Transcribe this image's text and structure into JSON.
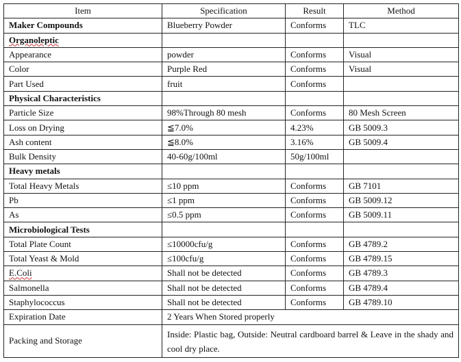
{
  "headers": [
    "Item",
    "Specification",
    "Result",
    "Method"
  ],
  "rows": [
    {
      "item": "Maker Compounds",
      "spec": "Blueberry Powder",
      "result": "Conforms",
      "method": "TLC",
      "bold": true
    },
    {
      "item": "Organoleptic",
      "spec": "",
      "result": "",
      "method": "",
      "bold": true,
      "underline": true
    },
    {
      "item": "Appearance",
      "spec": "powder",
      "result": "Conforms",
      "method": "Visual"
    },
    {
      "item": "Color",
      "spec": "Purple Red",
      "result": "Conforms",
      "method": "Visual"
    },
    {
      "item": "Part Used",
      "spec": "fruit",
      "result": "Conforms",
      "method": ""
    },
    {
      "item": "Physical Characteristics",
      "spec": "",
      "result": "",
      "method": "",
      "bold": true
    },
    {
      "item": "Particle Size",
      "spec": "98%Through 80 mesh",
      "result": "Conforms",
      "method": "80 Mesh Screen"
    },
    {
      "item": "Loss on Drying",
      "spec": "≦7.0%",
      "result": "4.23%",
      "method": "GB 5009.3"
    },
    {
      "item": "Ash content",
      "spec": "≦8.0%",
      "result": "3.16%",
      "method": "GB 5009.4"
    },
    {
      "item": "Bulk Density",
      "spec": "40-60g/100ml",
      "result": "50g/100ml",
      "method": ""
    },
    {
      "item": "Heavy metals",
      "spec": "",
      "result": "",
      "method": "",
      "bold": true
    },
    {
      "item": "Total Heavy Metals",
      "spec": "≤10 ppm",
      "result": "Conforms",
      "method": "GB 7101"
    },
    {
      "item": "Pb",
      "spec": "≤1 ppm",
      "result": "Conforms",
      "method": "GB 5009.12"
    },
    {
      "item": "As",
      "spec": "≤0.5 ppm",
      "result": "Conforms",
      "method": "GB 5009.11"
    },
    {
      "item": "Microbiological Tests",
      "spec": "",
      "result": "",
      "method": "",
      "bold": true
    },
    {
      "item": "Total Plate Count",
      "spec": "≤10000cfu/g",
      "result": "Conforms",
      "method": "GB 4789.2"
    },
    {
      "item": "Total Yeast & Mold",
      "spec": "≤100cfu/g",
      "result": "Conforms",
      "method": "GB 4789.15"
    },
    {
      "item": "E.Coli",
      "spec": "Shall not be detected",
      "result": "Conforms",
      "method": "GB 4789.3",
      "underline": true
    },
    {
      "item": "Salmonella",
      "spec": "Shall not be detected",
      "result": "Conforms",
      "method": "GB 4789.4"
    },
    {
      "item": "Staphylococcus",
      "spec": "Shall not be detected",
      "result": "Conforms",
      "method": "GB 4789.10"
    }
  ],
  "expiration": {
    "item": "Expiration Date",
    "value": "2 Years When Stored properly"
  },
  "packing": {
    "item": "Packing and Storage",
    "value": "Inside: Plastic bag, Outside: Neutral cardboard barrel & Leave in the shady and cool dry place."
  }
}
